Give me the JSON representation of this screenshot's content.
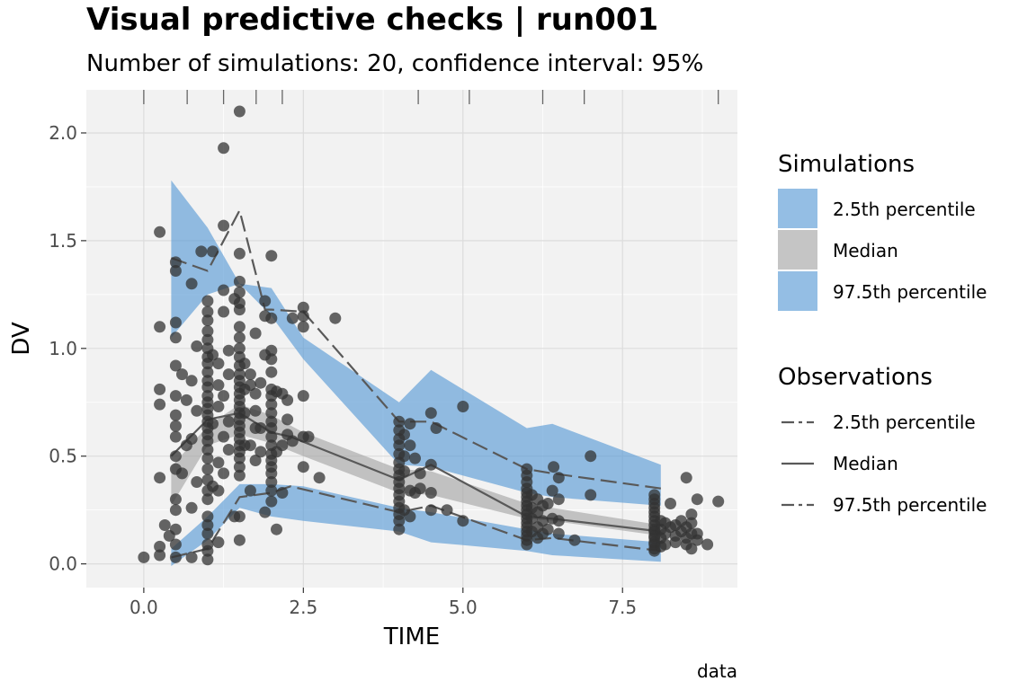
{
  "chart_data": {
    "type": "scatter",
    "title": "Visual predictive checks | run001",
    "subtitle": "Number of simulations: 20, confidence interval: 95%",
    "xlabel": "TIME",
    "ylabel": "DV",
    "caption": "data",
    "xlim": [
      -0.9,
      9.3
    ],
    "ylim": [
      -0.11,
      2.2
    ],
    "x_ticks": [
      0.0,
      2.5,
      5.0,
      7.5
    ],
    "x_tick_labels": [
      "0.0",
      "2.5",
      "5.0",
      "7.5"
    ],
    "y_ticks": [
      0.0,
      0.5,
      1.0,
      1.5,
      2.0
    ],
    "y_tick_labels": [
      "0.0",
      "0.5",
      "1.0",
      "1.5",
      "2.0"
    ],
    "grid": true,
    "legend_position": "right",
    "bin_edges": [
      0,
      0.68,
      1.25,
      1.76,
      2.17,
      4.3,
      5.1,
      6.25,
      6.9,
      9.0
    ],
    "simulation_bands": [
      {
        "name": "2.5th percentile",
        "color": "#5b9bd5",
        "x": [
          0.43,
          1.0,
          1.5,
          2.0,
          2.5,
          4.0,
          4.5,
          6.0,
          6.4,
          8.1
        ],
        "lower": [
          -0.01,
          0.11,
          0.26,
          0.22,
          0.2,
          0.15,
          0.1,
          0.06,
          0.04,
          0.01
        ],
        "upper": [
          0.07,
          0.22,
          0.37,
          0.37,
          0.36,
          0.26,
          0.24,
          0.16,
          0.14,
          0.1
        ]
      },
      {
        "name": "Median",
        "color": "#a6a6a6",
        "x": [
          0.43,
          1.0,
          1.5,
          2.0,
          2.5,
          4.0,
          4.5,
          6.0,
          6.4,
          8.1
        ],
        "lower": [
          0.27,
          0.55,
          0.6,
          0.56,
          0.5,
          0.33,
          0.32,
          0.21,
          0.2,
          0.13
        ],
        "upper": [
          0.45,
          0.64,
          0.74,
          0.69,
          0.61,
          0.44,
          0.43,
          0.28,
          0.26,
          0.18
        ]
      },
      {
        "name": "97.5th percentile",
        "color": "#5b9bd5",
        "x": [
          0.43,
          1.0,
          1.5,
          2.0,
          2.5,
          4.0,
          4.5,
          6.0,
          6.4,
          8.1
        ],
        "lower": [
          1.05,
          1.25,
          1.3,
          1.15,
          0.95,
          0.46,
          0.45,
          0.33,
          0.31,
          0.27
        ],
        "upper": [
          1.78,
          1.56,
          1.3,
          1.28,
          1.05,
          0.75,
          0.9,
          0.63,
          0.65,
          0.46
        ]
      }
    ],
    "observation_lines": [
      {
        "name": "2.5th percentile",
        "style": "longdash",
        "x": [
          0.43,
          1.0,
          1.5,
          2.0,
          2.3,
          4.0,
          4.5,
          6.0,
          6.4,
          8.1
        ],
        "y": [
          0.03,
          0.07,
          0.31,
          0.33,
          0.36,
          0.24,
          0.27,
          0.11,
          0.12,
          0.06
        ]
      },
      {
        "name": "Median",
        "style": "solid",
        "x": [
          0.43,
          1.0,
          1.5,
          2.0,
          2.3,
          4.0,
          4.5,
          6.0,
          6.4,
          8.1
        ],
        "y": [
          0.5,
          0.67,
          0.7,
          0.61,
          0.59,
          0.39,
          0.46,
          0.22,
          0.21,
          0.15
        ]
      },
      {
        "name": "97.5th percentile",
        "style": "longdash",
        "x": [
          0.43,
          1.0,
          1.5,
          1.9,
          2.0,
          2.5,
          4.0,
          4.5,
          6.0,
          6.4,
          8.1
        ],
        "y": [
          1.42,
          1.36,
          1.64,
          1.18,
          1.18,
          1.17,
          0.66,
          0.66,
          0.44,
          0.42,
          0.35
        ]
      }
    ],
    "legend": {
      "simulations": {
        "title": "Simulations",
        "entries": [
          "2.5th percentile",
          "Median",
          "97.5th percentile"
        ],
        "colors": [
          "#5b9bd5",
          "#a6a6a6",
          "#5b9bd5"
        ]
      },
      "observations": {
        "title": "Observations",
        "entries": [
          "2.5th percentile",
          "Median",
          "97.5th percentile"
        ],
        "styles": [
          "longdash",
          "solid",
          "longdash"
        ]
      }
    },
    "points": [
      [
        0,
        0.03
      ],
      [
        0.25,
        0.08
      ],
      [
        0.25,
        0.04
      ],
      [
        0.25,
        0.4
      ],
      [
        0.25,
        0.74
      ],
      [
        0.25,
        0.81
      ],
      [
        0.25,
        1.1
      ],
      [
        0.25,
        1.54
      ],
      [
        0.33,
        0.18
      ],
      [
        0.4,
        0.13
      ],
      [
        0.5,
        0.03
      ],
      [
        0.5,
        0.09
      ],
      [
        0.5,
        0.16
      ],
      [
        0.5,
        0.25
      ],
      [
        0.5,
        0.3
      ],
      [
        0.5,
        0.44
      ],
      [
        0.5,
        0.5
      ],
      [
        0.5,
        0.59
      ],
      [
        0.5,
        0.64
      ],
      [
        0.5,
        0.69
      ],
      [
        0.5,
        0.78
      ],
      [
        0.5,
        0.92
      ],
      [
        0.5,
        1.05
      ],
      [
        0.5,
        1.12
      ],
      [
        0.5,
        1.36
      ],
      [
        0.5,
        1.4
      ],
      [
        0.6,
        0.42
      ],
      [
        0.6,
        0.88
      ],
      [
        0.67,
        0.55
      ],
      [
        0.67,
        0.76
      ],
      [
        0.75,
        0.03
      ],
      [
        0.75,
        0.26
      ],
      [
        0.75,
        0.58
      ],
      [
        0.75,
        0.85
      ],
      [
        0.75,
        1.3
      ],
      [
        0.83,
        0.38
      ],
      [
        0.83,
        0.71
      ],
      [
        0.83,
        1.01
      ],
      [
        0.9,
        1.45
      ],
      [
        1,
        0.02
      ],
      [
        1,
        0.06
      ],
      [
        1,
        0.09
      ],
      [
        1,
        0.14
      ],
      [
        1,
        0.18
      ],
      [
        1,
        0.22
      ],
      [
        1,
        0.3
      ],
      [
        1,
        0.34
      ],
      [
        1,
        0.39
      ],
      [
        1,
        0.44
      ],
      [
        1,
        0.49
      ],
      [
        1,
        0.53
      ],
      [
        1,
        0.57
      ],
      [
        1,
        0.6
      ],
      [
        1,
        0.63
      ],
      [
        1,
        0.66
      ],
      [
        1,
        0.69
      ],
      [
        1,
        0.72
      ],
      [
        1,
        0.75
      ],
      [
        1,
        0.78
      ],
      [
        1,
        0.82
      ],
      [
        1,
        0.85
      ],
      [
        1,
        0.89
      ],
      [
        1,
        0.93
      ],
      [
        1,
        0.96
      ],
      [
        1,
        1.0
      ],
      [
        1,
        1.04
      ],
      [
        1,
        1.08
      ],
      [
        1,
        1.13
      ],
      [
        1,
        1.17
      ],
      [
        1,
        1.22
      ],
      [
        1.08,
        0.36
      ],
      [
        1.08,
        0.65
      ],
      [
        1.08,
        0.97
      ],
      [
        1.08,
        1.45
      ],
      [
        1.17,
        0.1
      ],
      [
        1.17,
        0.34
      ],
      [
        1.17,
        0.47
      ],
      [
        1.17,
        0.73
      ],
      [
        1.17,
        0.83
      ],
      [
        1.17,
        0.93
      ],
      [
        1.25,
        0.42
      ],
      [
        1.25,
        0.59
      ],
      [
        1.25,
        0.78
      ],
      [
        1.25,
        1.17
      ],
      [
        1.25,
        1.27
      ],
      [
        1.25,
        1.57
      ],
      [
        1.25,
        1.93
      ],
      [
        1.33,
        0.53
      ],
      [
        1.33,
        0.66
      ],
      [
        1.33,
        0.88
      ],
      [
        1.33,
        0.99
      ],
      [
        1.42,
        0.22
      ],
      [
        1.42,
        1.23
      ],
      [
        1.5,
        0.11
      ],
      [
        1.5,
        0.22
      ],
      [
        1.5,
        0.41
      ],
      [
        1.5,
        0.45
      ],
      [
        1.5,
        0.49
      ],
      [
        1.5,
        0.52
      ],
      [
        1.5,
        0.55
      ],
      [
        1.5,
        0.58
      ],
      [
        1.5,
        0.61
      ],
      [
        1.5,
        0.64
      ],
      [
        1.5,
        0.67
      ],
      [
        1.5,
        0.7
      ],
      [
        1.5,
        0.73
      ],
      [
        1.5,
        0.76
      ],
      [
        1.5,
        0.79
      ],
      [
        1.5,
        0.82
      ],
      [
        1.5,
        0.85
      ],
      [
        1.5,
        0.88
      ],
      [
        1.5,
        0.92
      ],
      [
        1.5,
        0.96
      ],
      [
        1.5,
        1.0
      ],
      [
        1.5,
        1.05
      ],
      [
        1.5,
        1.1
      ],
      [
        1.5,
        1.18
      ],
      [
        1.5,
        1.21
      ],
      [
        1.5,
        1.26
      ],
      [
        1.5,
        1.31
      ],
      [
        1.5,
        1.44
      ],
      [
        1.5,
        2.1
      ],
      [
        1.58,
        0.55
      ],
      [
        1.58,
        0.7
      ],
      [
        1.58,
        0.81
      ],
      [
        1.58,
        0.93
      ],
      [
        1.67,
        0.34
      ],
      [
        1.67,
        0.55
      ],
      [
        1.67,
        0.83
      ],
      [
        1.67,
        0.88
      ],
      [
        1.75,
        0.48
      ],
      [
        1.75,
        0.63
      ],
      [
        1.75,
        0.71
      ],
      [
        1.75,
        0.79
      ],
      [
        1.75,
        1.07
      ],
      [
        1.83,
        0.52
      ],
      [
        1.83,
        0.63
      ],
      [
        1.83,
        0.84
      ],
      [
        1.9,
        0.24
      ],
      [
        1.9,
        0.97
      ],
      [
        1.9,
        1.15
      ],
      [
        1.9,
        1.22
      ],
      [
        2,
        0.29
      ],
      [
        2,
        0.34
      ],
      [
        2,
        0.38
      ],
      [
        2,
        0.42
      ],
      [
        2,
        0.45
      ],
      [
        2,
        0.48
      ],
      [
        2,
        0.51
      ],
      [
        2,
        0.55
      ],
      [
        2,
        0.59
      ],
      [
        2,
        0.63
      ],
      [
        2,
        0.66
      ],
      [
        2,
        0.7
      ],
      [
        2,
        0.74
      ],
      [
        2,
        0.78
      ],
      [
        2,
        0.81
      ],
      [
        2,
        0.89
      ],
      [
        2,
        0.95
      ],
      [
        2,
        0.99
      ],
      [
        2,
        1.14
      ],
      [
        2,
        1.43
      ],
      [
        2.08,
        0.16
      ],
      [
        2.08,
        0.52
      ],
      [
        2.08,
        0.8
      ],
      [
        2.17,
        0.33
      ],
      [
        2.17,
        0.55
      ],
      [
        2.17,
        0.79
      ],
      [
        2.25,
        0.6
      ],
      [
        2.25,
        0.67
      ],
      [
        2.25,
        0.76
      ],
      [
        2.33,
        0.57
      ],
      [
        2.33,
        1.14
      ],
      [
        2.5,
        0.45
      ],
      [
        2.5,
        0.59
      ],
      [
        2.5,
        0.78
      ],
      [
        2.5,
        1.1
      ],
      [
        2.5,
        1.15
      ],
      [
        2.5,
        1.19
      ],
      [
        2.58,
        0.59
      ],
      [
        2.75,
        0.4
      ],
      [
        3,
        1.14
      ],
      [
        4,
        0.16
      ],
      [
        4,
        0.2
      ],
      [
        4,
        0.23
      ],
      [
        4,
        0.26
      ],
      [
        4,
        0.29
      ],
      [
        4,
        0.32
      ],
      [
        4,
        0.35
      ],
      [
        4,
        0.38
      ],
      [
        4,
        0.41
      ],
      [
        4,
        0.44
      ],
      [
        4,
        0.47
      ],
      [
        4,
        0.51
      ],
      [
        4,
        0.55
      ],
      [
        4,
        0.58
      ],
      [
        4,
        0.62
      ],
      [
        4,
        0.66
      ],
      [
        4.08,
        0.25
      ],
      [
        4.08,
        0.43
      ],
      [
        4.08,
        0.5
      ],
      [
        4.08,
        0.6
      ],
      [
        4.17,
        0.22
      ],
      [
        4.17,
        0.34
      ],
      [
        4.17,
        0.55
      ],
      [
        4.17,
        0.65
      ],
      [
        4.25,
        0.33
      ],
      [
        4.25,
        0.49
      ],
      [
        4.33,
        0.35
      ],
      [
        4.33,
        0.42
      ],
      [
        4.5,
        0.25
      ],
      [
        4.5,
        0.33
      ],
      [
        4.5,
        0.46
      ],
      [
        4.5,
        0.7
      ],
      [
        4.58,
        0.63
      ],
      [
        4.75,
        0.25
      ],
      [
        5,
        0.2
      ],
      [
        5,
        0.73
      ],
      [
        6,
        0.09
      ],
      [
        6,
        0.11
      ],
      [
        6,
        0.13
      ],
      [
        6,
        0.15
      ],
      [
        6,
        0.17
      ],
      [
        6,
        0.19
      ],
      [
        6,
        0.21
      ],
      [
        6,
        0.23
      ],
      [
        6,
        0.25
      ],
      [
        6,
        0.27
      ],
      [
        6,
        0.29
      ],
      [
        6,
        0.31
      ],
      [
        6,
        0.33
      ],
      [
        6,
        0.35
      ],
      [
        6,
        0.38
      ],
      [
        6,
        0.41
      ],
      [
        6,
        0.44
      ],
      [
        6.08,
        0.15
      ],
      [
        6.08,
        0.21
      ],
      [
        6.08,
        0.26
      ],
      [
        6.08,
        0.32
      ],
      [
        6.17,
        0.12
      ],
      [
        6.17,
        0.17
      ],
      [
        6.17,
        0.24
      ],
      [
        6.17,
        0.3
      ],
      [
        6.25,
        0.14
      ],
      [
        6.25,
        0.2
      ],
      [
        6.25,
        0.27
      ],
      [
        6.33,
        0.16
      ],
      [
        6.33,
        0.28
      ],
      [
        6.4,
        0.21
      ],
      [
        6.4,
        0.34
      ],
      [
        6.42,
        0.45
      ],
      [
        6.5,
        0.14
      ],
      [
        6.5,
        0.2
      ],
      [
        6.5,
        0.3
      ],
      [
        6.5,
        0.4
      ],
      [
        6.75,
        0.11
      ],
      [
        7,
        0.32
      ],
      [
        7,
        0.5
      ],
      [
        8,
        0.06
      ],
      [
        8,
        0.07
      ],
      [
        8,
        0.09
      ],
      [
        8,
        0.1
      ],
      [
        8,
        0.12
      ],
      [
        8,
        0.13
      ],
      [
        8,
        0.15
      ],
      [
        8,
        0.16
      ],
      [
        8,
        0.18
      ],
      [
        8,
        0.2
      ],
      [
        8,
        0.22
      ],
      [
        8,
        0.24
      ],
      [
        8,
        0.26
      ],
      [
        8,
        0.28
      ],
      [
        8,
        0.3
      ],
      [
        8,
        0.32
      ],
      [
        8.1,
        0.08
      ],
      [
        8.1,
        0.12
      ],
      [
        8.1,
        0.16
      ],
      [
        8.1,
        0.2
      ],
      [
        8.17,
        0.09
      ],
      [
        8.17,
        0.14
      ],
      [
        8.17,
        0.19
      ],
      [
        8.25,
        0.28
      ],
      [
        8.25,
        0.17
      ],
      [
        8.33,
        0.1
      ],
      [
        8.33,
        0.13
      ],
      [
        8.33,
        0.18
      ],
      [
        8.42,
        0.15
      ],
      [
        8.42,
        0.2
      ],
      [
        8.5,
        0.09
      ],
      [
        8.5,
        0.12
      ],
      [
        8.5,
        0.17
      ],
      [
        8.5,
        0.4
      ],
      [
        8.58,
        0.07
      ],
      [
        8.58,
        0.14
      ],
      [
        8.58,
        0.19
      ],
      [
        8.58,
        0.23
      ],
      [
        8.67,
        0.11
      ],
      [
        8.67,
        0.14
      ],
      [
        8.67,
        0.3
      ],
      [
        8.83,
        0.09
      ],
      [
        9,
        0.29
      ]
    ]
  }
}
